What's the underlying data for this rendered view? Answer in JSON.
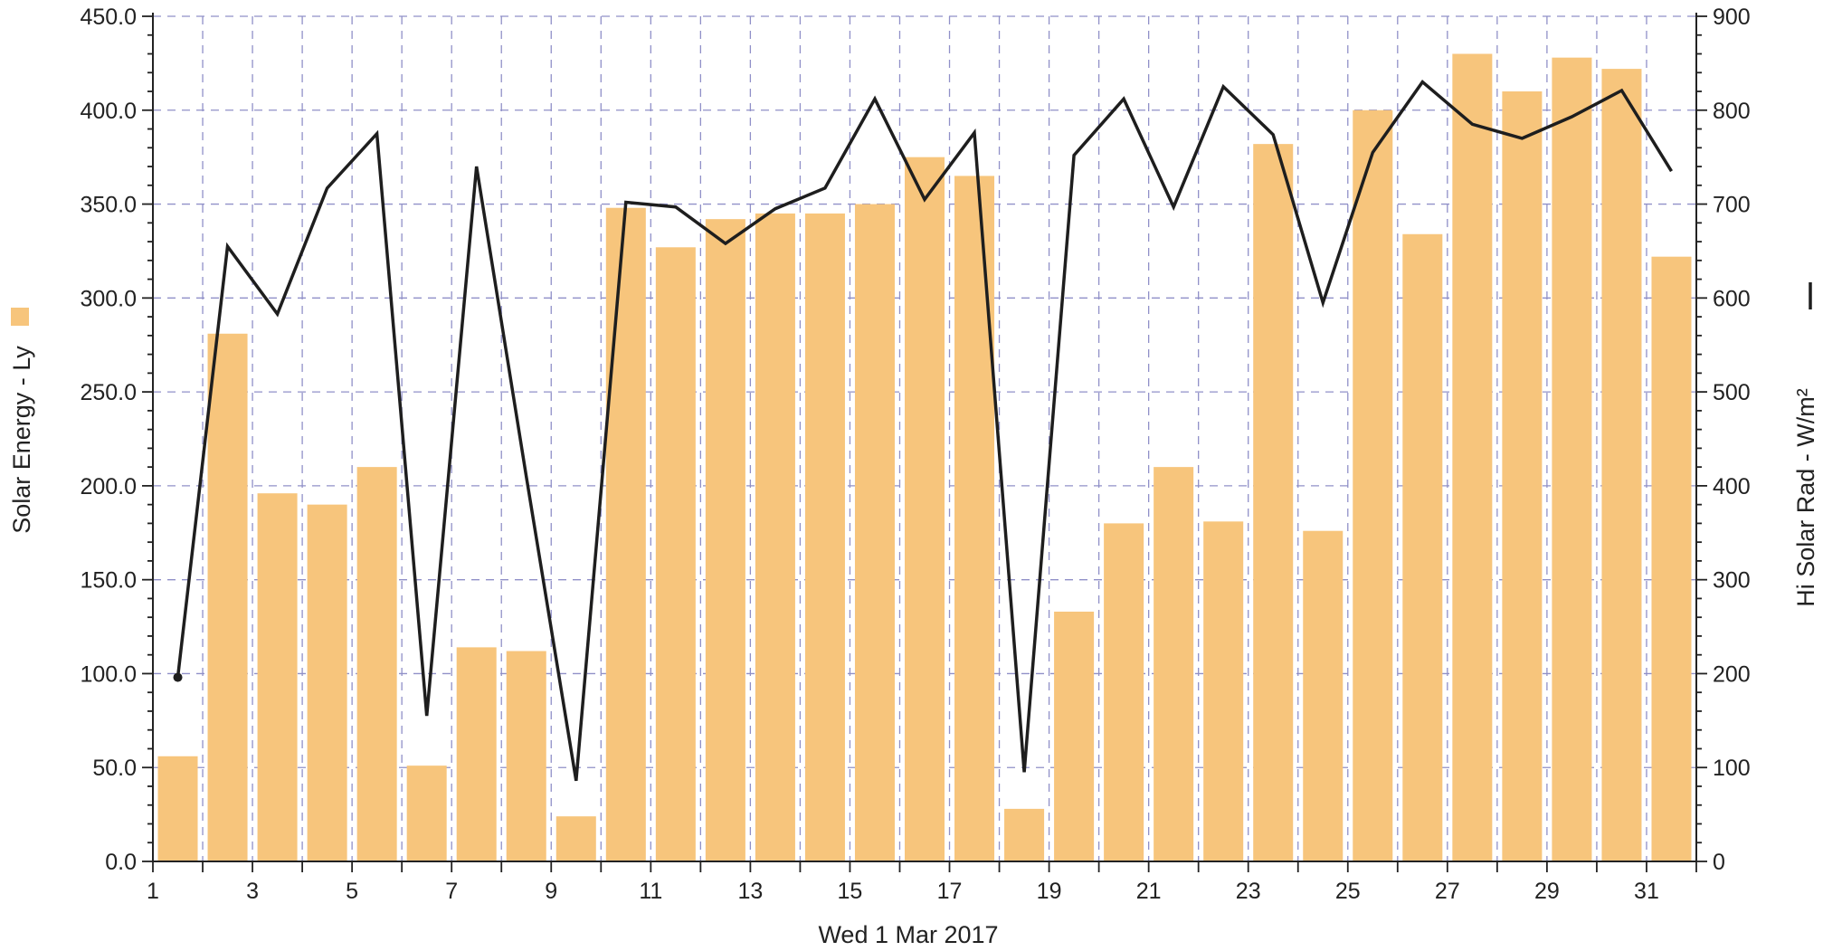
{
  "chart_data": {
    "type": "bar",
    "xlabel": "Wed 1 Mar 2017",
    "x_ticks": [
      1,
      3,
      5,
      7,
      9,
      11,
      13,
      15,
      17,
      19,
      21,
      23,
      25,
      27,
      29,
      31
    ],
    "days": [
      1,
      2,
      3,
      4,
      5,
      6,
      7,
      8,
      9,
      10,
      11,
      12,
      13,
      14,
      15,
      16,
      17,
      18,
      19,
      20,
      21,
      22,
      23,
      24,
      25,
      26,
      27,
      28,
      29,
      30,
      31
    ],
    "xlim": [
      1,
      32
    ],
    "grid": true,
    "series": [
      {
        "name": "Solar Energy - Ly",
        "type": "bar",
        "axis": "left",
        "color": "#f7c57c",
        "values": [
          56,
          281,
          196,
          190,
          210,
          51,
          114,
          112,
          24,
          348,
          327,
          342,
          345,
          345,
          350,
          375,
          365,
          28,
          133,
          180,
          210,
          181,
          382,
          176,
          400,
          334,
          430,
          410,
          428,
          422,
          322
        ]
      },
      {
        "name": "Hi Solar Rad - W/m²",
        "type": "line",
        "axis": "right",
        "color": "#1e1e1e",
        "values": [
          196,
          655,
          583,
          717,
          775,
          155,
          740,
          410,
          86,
          702,
          697,
          658,
          695,
          717,
          812,
          705,
          776,
          95,
          752,
          812,
          697,
          825,
          774,
          595,
          755,
          830,
          785,
          770,
          793,
          821,
          735
        ]
      }
    ],
    "y_left": {
      "label": "Solar Energy - Ly",
      "range": [
        0,
        450
      ],
      "ticks": [
        "0.0",
        "50.0",
        "100.0",
        "150.0",
        "200.0",
        "250.0",
        "300.0",
        "350.0",
        "400.0",
        "450.0"
      ]
    },
    "y_right": {
      "label": "Hi Solar Rad - W/m²",
      "range": [
        0,
        900
      ],
      "ticks": [
        "0",
        "100",
        "200",
        "300",
        "400",
        "500",
        "600",
        "700",
        "800",
        "900"
      ]
    }
  }
}
